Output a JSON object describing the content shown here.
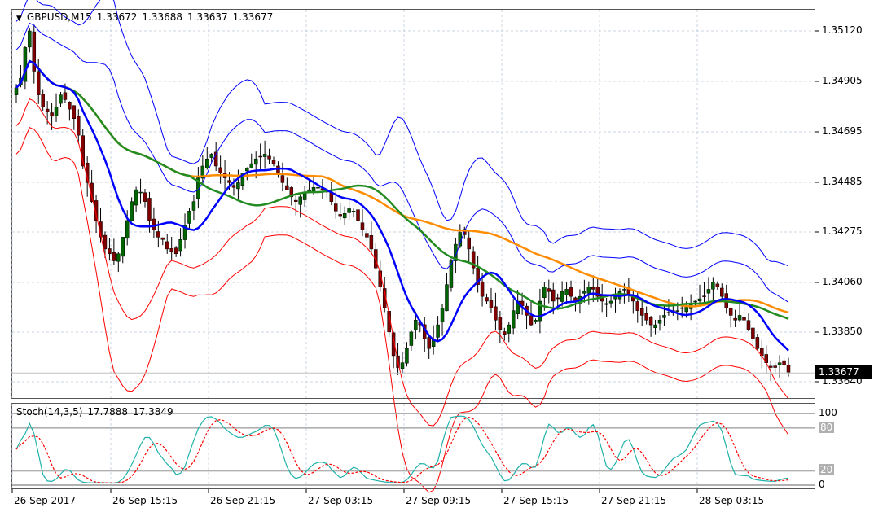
{
  "chart_header": {
    "symbol": "GBPUSD,M15",
    "open": "1.33672",
    "high": "1.33688",
    "low": "1.33637",
    "close": "1.33677"
  },
  "stoch_header": {
    "name": "Stoch(14,3,5)",
    "main": "17.7888",
    "signal": "17.3849"
  },
  "price_axis": [
    "1.35120",
    "1.34905",
    "1.34695",
    "1.34485",
    "1.34275",
    "1.34060",
    "1.33850",
    "1.33640"
  ],
  "current_price": "1.33677",
  "stoch_axis": [
    "100",
    "80",
    "20",
    "0"
  ],
  "time_axis": [
    "26 Sep 2017",
    "26 Sep 15:15",
    "26 Sep 21:15",
    "27 Sep 03:15",
    "27 Sep 09:15",
    "27 Sep 15:15",
    "27 Sep 21:15",
    "28 Sep 03:15"
  ],
  "colors": {
    "bull_candle": "#006400",
    "bear_candle": "#800000",
    "ma_fast": "#0000ff",
    "ma_mid": "#228b22",
    "ma_slow": "#ff8c00",
    "bb_upper": "#0000ff",
    "bb_lower": "#ff0000",
    "stoch_main": "#20b2aa",
    "stoch_signal": "#ff0000",
    "grid": "#c8d4e0"
  },
  "chart_data": {
    "type": "candlestick",
    "symbol": "GBPUSD",
    "timeframe": "M15",
    "ylim": [
      1.3356,
      1.3519
    ],
    "close_series": [
      1.3488,
      1.3492,
      1.3505,
      1.3512,
      1.3495,
      1.3485,
      1.348,
      1.3478,
      1.3476,
      1.348,
      1.3485,
      1.3483,
      1.3479,
      1.3475,
      1.3468,
      1.3455,
      1.3448,
      1.344,
      1.3432,
      1.3425,
      1.342,
      1.3418,
      1.3415,
      1.3418,
      1.3425,
      1.3432,
      1.344,
      1.3445,
      1.3444,
      1.344,
      1.3432,
      1.3428,
      1.3425,
      1.3424,
      1.342,
      1.3419,
      1.3418,
      1.3424,
      1.343,
      1.3436,
      1.344,
      1.345,
      1.3455,
      1.3458,
      1.346,
      1.3455,
      1.3452,
      1.345,
      1.3448,
      1.3446,
      1.3448,
      1.3452,
      1.3454,
      1.3456,
      1.3458,
      1.3459,
      1.346,
      1.3458,
      1.3456,
      1.3452,
      1.3448,
      1.3445,
      1.3442,
      1.344,
      1.3442,
      1.3444,
      1.3445,
      1.3446,
      1.3446,
      1.3445,
      1.3444,
      1.344,
      1.3436,
      1.3434,
      1.3435,
      1.3437,
      1.3436,
      1.3432,
      1.3428,
      1.3425,
      1.342,
      1.3412,
      1.3404,
      1.3395,
      1.3385,
      1.3375,
      1.337,
      1.3372,
      1.3378,
      1.3385,
      1.339,
      1.3388,
      1.3382,
      1.3378,
      1.3382,
      1.3388,
      1.3395,
      1.3405,
      1.3415,
      1.3422,
      1.3427,
      1.3426,
      1.342,
      1.3412,
      1.3405,
      1.34,
      1.3398,
      1.3395,
      1.339,
      1.3386,
      1.3384,
      1.3388,
      1.3394,
      1.3398,
      1.3396,
      1.3392,
      1.3388,
      1.339,
      1.3398,
      1.3404,
      1.3402,
      1.3398,
      1.3399,
      1.3402,
      1.3403,
      1.34,
      1.3398,
      1.34,
      1.3402,
      1.3404,
      1.3403,
      1.34,
      1.3398,
      1.3397,
      1.3398,
      1.34,
      1.3402,
      1.3403,
      1.3401,
      1.3398,
      1.3394,
      1.3392,
      1.339,
      1.3388,
      1.3388,
      1.339,
      1.3392,
      1.3393,
      1.3394,
      1.3394,
      1.3395,
      1.3396,
      1.3397,
      1.3398,
      1.3399,
      1.34,
      1.3403,
      1.3406,
      1.3404,
      1.34,
      1.3395,
      1.3392,
      1.339,
      1.3392,
      1.339,
      1.3386,
      1.3382,
      1.3378,
      1.3375,
      1.3372,
      1.337,
      1.337,
      1.3372,
      1.3371,
      1.3368
    ]
  }
}
